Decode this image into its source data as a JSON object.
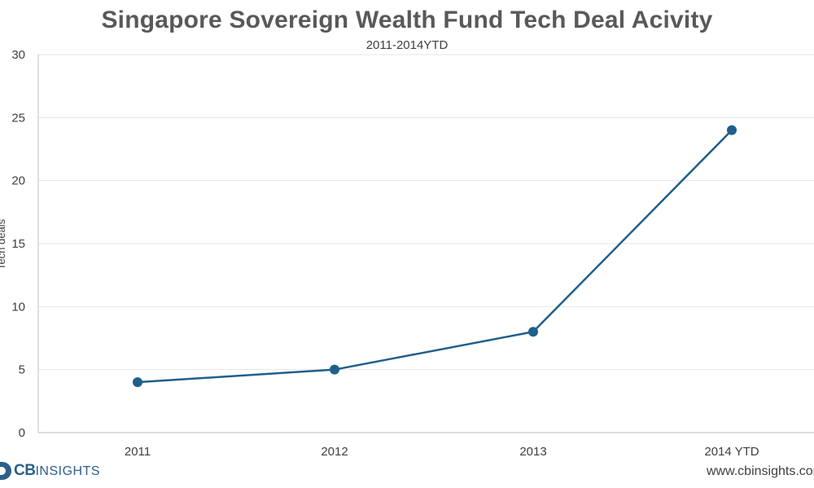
{
  "chart_data": {
    "type": "line",
    "title": "Singapore Sovereign Wealth Fund Tech Deal Acivity",
    "subtitle": "2011-2014YTD",
    "ylabel": "Tech deals",
    "xlabel": "",
    "categories": [
      "2011",
      "2012",
      "2013",
      "2014 YTD"
    ],
    "series": [
      {
        "values": [
          4,
          5,
          8,
          24
        ]
      }
    ],
    "ylim": [
      0,
      30
    ],
    "yticks": [
      "0",
      "5",
      "10",
      "15",
      "20",
      "25",
      "30"
    ],
    "grid": true,
    "legend": "none",
    "colors": {
      "line": "#1f5f8b",
      "grid": "#e6e6e6",
      "axis": "#bfbfbf"
    }
  },
  "branding": {
    "logo_main": "CB",
    "logo_secondary": "INSIGHTS",
    "url": "www.cbinsights.com"
  }
}
